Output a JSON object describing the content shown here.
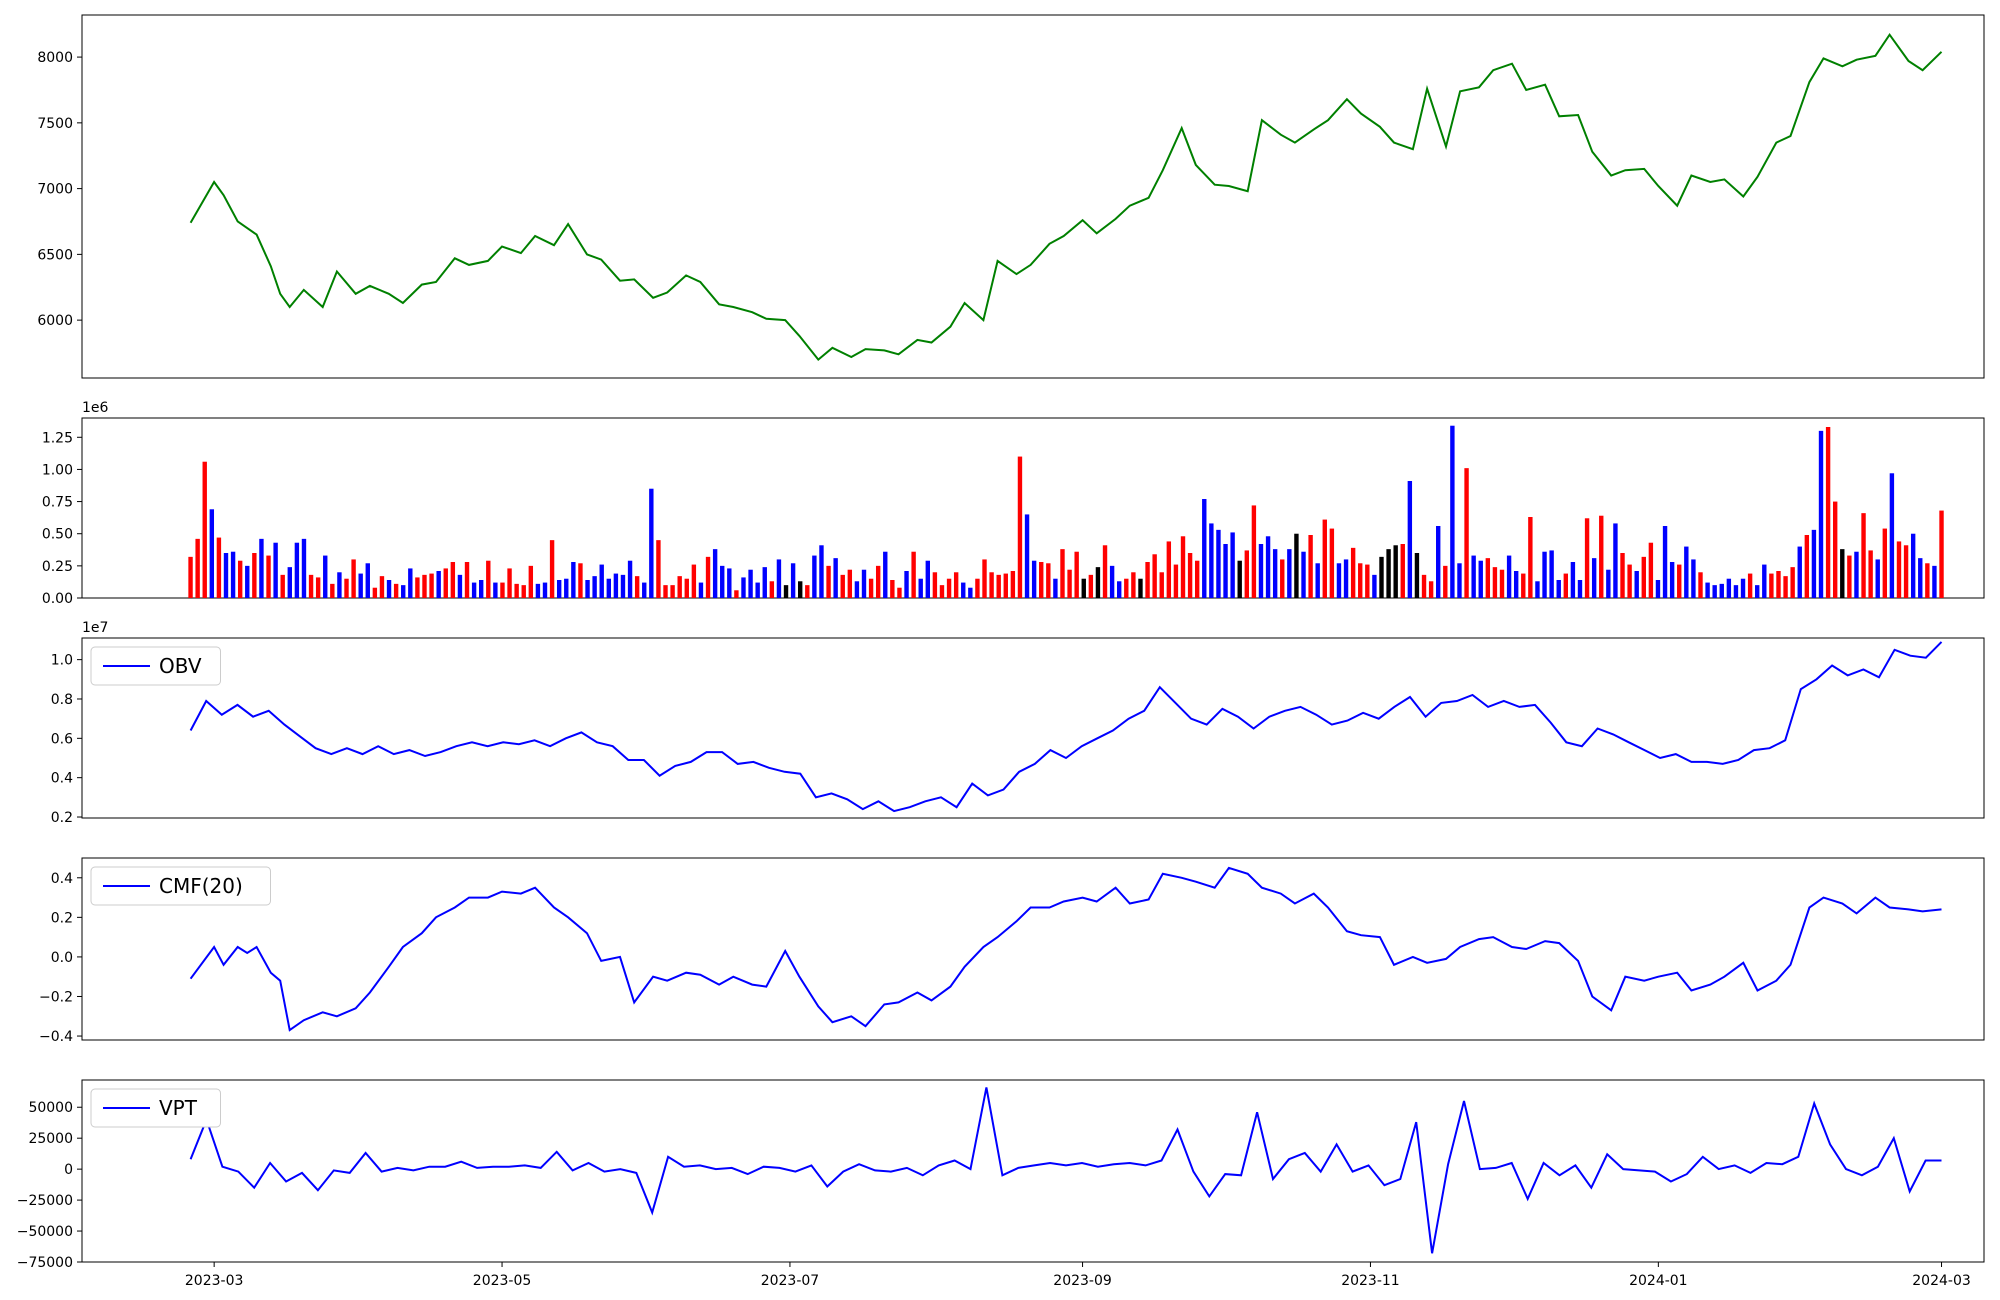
{
  "chart_data": [
    {
      "type": "line",
      "color": "#008000",
      "xlim": [
        "2023-02-01",
        "2024-03-10"
      ],
      "ylim": [
        5560,
        8320
      ],
      "yticks": [
        6000,
        6500,
        7000,
        7500,
        8000
      ],
      "ytick_labels": [
        "6000",
        "6500",
        "7000",
        "7500",
        "8000"
      ],
      "xticks": [],
      "x": [
        "2023-02-24",
        "2023-03-01",
        "2023-03-03",
        "2023-03-06",
        "2023-03-08",
        "2023-03-10",
        "2023-03-13",
        "2023-03-15",
        "2023-03-17",
        "2023-03-20",
        "2023-03-24",
        "2023-03-27",
        "2023-03-31",
        "2023-04-03",
        "2023-04-07",
        "2023-04-10",
        "2023-04-14",
        "2023-04-17",
        "2023-04-21",
        "2023-04-24",
        "2023-04-28",
        "2023-05-01",
        "2023-05-05",
        "2023-05-08",
        "2023-05-12",
        "2023-05-15",
        "2023-05-19",
        "2023-05-22",
        "2023-05-26",
        "2023-05-29",
        "2023-06-02",
        "2023-06-05",
        "2023-06-09",
        "2023-06-12",
        "2023-06-16",
        "2023-06-19",
        "2023-06-23",
        "2023-06-26",
        "2023-06-30",
        "2023-07-03",
        "2023-07-07",
        "2023-07-10",
        "2023-07-14",
        "2023-07-17",
        "2023-07-21",
        "2023-07-24",
        "2023-07-28",
        "2023-07-31",
        "2023-08-04",
        "2023-08-07",
        "2023-08-11",
        "2023-08-14",
        "2023-08-18",
        "2023-08-21",
        "2023-08-25",
        "2023-08-28",
        "2023-09-01",
        "2023-09-04",
        "2023-09-08",
        "2023-09-11",
        "2023-09-15",
        "2023-09-18",
        "2023-09-22",
        "2023-09-25",
        "2023-09-29",
        "2023-10-02",
        "2023-10-06",
        "2023-10-09",
        "2023-10-13",
        "2023-10-16",
        "2023-10-20",
        "2023-10-23",
        "2023-10-27",
        "2023-10-30",
        "2023-11-03",
        "2023-11-06",
        "2023-11-10",
        "2023-11-13",
        "2023-11-17",
        "2023-11-20",
        "2023-11-24",
        "2023-11-27",
        "2023-12-01",
        "2023-12-04",
        "2023-12-08",
        "2023-12-11",
        "2023-12-15",
        "2023-12-18",
        "2023-12-22",
        "2023-12-25",
        "2023-12-29",
        "2024-01-01",
        "2024-01-05",
        "2024-01-08",
        "2024-01-12",
        "2024-01-15",
        "2024-01-19",
        "2024-01-22",
        "2024-01-26",
        "2024-01-29",
        "2024-02-02",
        "2024-02-05",
        "2024-02-09",
        "2024-02-12",
        "2024-02-16",
        "2024-02-19",
        "2024-02-23",
        "2024-02-26",
        "2024-03-01"
      ],
      "values": [
        6740,
        7050,
        6950,
        6750,
        6700,
        6650,
        6410,
        6200,
        6100,
        6230,
        6100,
        6370,
        6200,
        6260,
        6200,
        6130,
        6270,
        6290,
        6470,
        6420,
        6450,
        6560,
        6510,
        6640,
        6570,
        6730,
        6500,
        6460,
        6300,
        6310,
        6170,
        6210,
        6340,
        6290,
        6120,
        6100,
        6060,
        6010,
        6000,
        5880,
        5700,
        5790,
        5720,
        5780,
        5770,
        5740,
        5850,
        5830,
        5950,
        6130,
        6000,
        6450,
        6350,
        6420,
        6580,
        6640,
        6760,
        6660,
        6770,
        6870,
        6930,
        7140,
        7460,
        7180,
        7030,
        7020,
        6980,
        7520,
        7410,
        7350,
        7450,
        7520,
        7680,
        7570,
        7470,
        7350,
        7300,
        7760,
        7320,
        7740,
        7770,
        7900,
        7950,
        7750,
        7790,
        7550,
        7560,
        7280,
        7100,
        7140,
        7150,
        7020,
        6870,
        7100,
        7050,
        7070,
        6940,
        7090,
        7350,
        7400,
        7810,
        7990,
        7930,
        7980,
        8010,
        8170,
        7970,
        7900,
        8040
      ]
    },
    {
      "type": "bar",
      "yticks": [
        0,
        250000,
        500000,
        750000,
        1000000,
        1250000
      ],
      "ytick_labels": [
        "0.00",
        "0.25",
        "0.50",
        "0.75",
        "1.00",
        "1.25"
      ],
      "ylim": [
        0,
        1400000
      ],
      "scale_label": "1e6",
      "colors": {
        "up": "#ff0000",
        "down": "#0000ff",
        "flat": "#000000"
      },
      "values": [
        320000,
        460000,
        1060000,
        690000,
        470000,
        350000,
        360000,
        290000,
        250000,
        350000,
        460000,
        330000,
        430000,
        180000,
        240000,
        430000,
        460000,
        180000,
        160000,
        330000,
        110000,
        200000,
        150000,
        300000,
        190000,
        270000,
        80000,
        170000,
        140000,
        110000,
        100000,
        230000,
        160000,
        180000,
        190000,
        210000,
        230000,
        280000,
        180000,
        280000,
        120000,
        140000,
        290000,
        120000,
        120000,
        230000,
        110000,
        100000,
        250000,
        110000,
        120000,
        450000,
        140000,
        150000,
        280000,
        270000,
        140000,
        170000,
        260000,
        150000,
        190000,
        180000,
        290000,
        170000,
        120000,
        850000,
        450000,
        100000,
        100000,
        170000,
        150000,
        260000,
        120000,
        320000,
        380000,
        250000,
        230000,
        60000,
        160000,
        220000,
        120000,
        240000,
        130000,
        300000,
        100000,
        270000,
        130000,
        100000,
        330000,
        410000,
        250000,
        310000,
        180000,
        220000,
        130000,
        220000,
        150000,
        250000,
        360000,
        140000,
        80000,
        210000,
        360000,
        150000,
        290000,
        200000,
        100000,
        150000,
        200000,
        120000,
        80000,
        150000,
        300000,
        200000,
        180000,
        190000,
        210000,
        1100000,
        650000,
        290000,
        280000,
        270000,
        150000,
        380000,
        220000,
        360000,
        150000,
        180000,
        240000,
        410000,
        250000,
        130000,
        150000,
        200000,
        150000,
        280000,
        340000,
        200000,
        440000,
        260000,
        480000,
        350000,
        290000,
        770000,
        580000,
        530000,
        420000,
        510000,
        290000,
        370000,
        720000,
        420000,
        480000,
        380000,
        300000,
        380000,
        500000,
        360000,
        490000,
        270000,
        610000,
        540000,
        270000,
        300000,
        390000,
        270000,
        260000,
        180000,
        320000,
        380000,
        410000,
        420000,
        910000,
        350000,
        180000,
        130000,
        560000,
        250000,
        1340000,
        270000,
        1010000,
        330000,
        290000,
        310000,
        240000,
        220000,
        330000,
        210000,
        190000,
        630000,
        130000,
        360000,
        370000,
        140000,
        190000,
        280000,
        140000,
        620000,
        310000,
        640000,
        220000,
        580000,
        350000,
        260000,
        210000,
        320000,
        430000,
        140000,
        560000,
        280000,
        260000,
        400000,
        300000,
        200000,
        120000,
        100000,
        110000,
        150000,
        100000,
        150000,
        190000,
        100000,
        260000,
        190000,
        210000,
        170000,
        240000,
        400000,
        490000,
        530000,
        1300000,
        1330000,
        750000,
        380000,
        330000,
        360000,
        660000,
        370000,
        300000,
        540000,
        970000,
        440000,
        410000,
        500000,
        310000,
        270000,
        250000,
        680000
      ],
      "bar_colors": [
        "up",
        "up",
        "up",
        "down",
        "up",
        "down",
        "down",
        "up",
        "down",
        "up",
        "down",
        "up",
        "down",
        "up",
        "down",
        "down",
        "down",
        "up",
        "up",
        "down",
        "up",
        "down",
        "up",
        "up",
        "down",
        "down",
        "up",
        "up",
        "down",
        "up",
        "down",
        "down",
        "up",
        "up",
        "up",
        "down",
        "up",
        "up",
        "down",
        "up",
        "down",
        "down",
        "up",
        "down",
        "up",
        "up",
        "up",
        "up",
        "up",
        "down",
        "down",
        "up",
        "down",
        "down",
        "down",
        "up",
        "down",
        "down",
        "down",
        "down",
        "down",
        "down",
        "down",
        "up",
        "down",
        "down",
        "up",
        "up",
        "up",
        "up",
        "up",
        "up",
        "down",
        "up",
        "down",
        "down",
        "down",
        "up",
        "down",
        "down",
        "down",
        "down",
        "up",
        "down",
        "flat",
        "down",
        "flat",
        "up",
        "down",
        "down",
        "up",
        "down",
        "up",
        "up",
        "down",
        "down",
        "up",
        "up",
        "down",
        "up",
        "up",
        "down",
        "up",
        "down",
        "down",
        "up",
        "up",
        "up",
        "up",
        "down",
        "down",
        "up",
        "up",
        "up",
        "up",
        "up",
        "up",
        "up",
        "down",
        "down",
        "up",
        "up",
        "down",
        "up",
        "up",
        "up",
        "flat",
        "up",
        "flat",
        "up",
        "down",
        "down",
        "up",
        "up",
        "flat",
        "up",
        "up",
        "up",
        "up",
        "up",
        "up",
        "up",
        "up",
        "down",
        "down",
        "down",
        "down",
        "down",
        "flat",
        "up",
        "up",
        "down",
        "down",
        "down",
        "up",
        "down",
        "flat",
        "down",
        "up",
        "down",
        "up",
        "up",
        "down",
        "down",
        "up",
        "up",
        "up",
        "down",
        "flat",
        "flat",
        "flat",
        "up",
        "down",
        "flat",
        "up",
        "up",
        "down",
        "up",
        "down",
        "down",
        "up",
        "down",
        "down",
        "up",
        "up",
        "up",
        "down",
        "down",
        "up",
        "up",
        "down",
        "down",
        "down",
        "down",
        "up",
        "down",
        "down",
        "up",
        "down",
        "up",
        "down",
        "down",
        "up",
        "up",
        "down",
        "up",
        "up",
        "down",
        "down",
        "down",
        "up",
        "down",
        "down",
        "up",
        "down",
        "down",
        "down",
        "down",
        "down",
        "down",
        "up",
        "down",
        "down",
        "up",
        "up",
        "up",
        "up",
        "down",
        "up",
        "down",
        "down",
        "up",
        "up",
        "flat",
        "up",
        "down",
        "up",
        "up",
        "down",
        "up",
        "down",
        "up",
        "up",
        "down",
        "down",
        "up",
        "down",
        "up",
        "up",
        "up"
      ]
    },
    {
      "type": "line",
      "color": "#0000ff",
      "legend": "OBV",
      "scale_label": "1e7",
      "ylim": [
        1950000,
        11100000
      ],
      "yticks": [
        2000000,
        4000000,
        6000000,
        8000000,
        10000000
      ],
      "ytick_labels": [
        "0.2",
        "0.4",
        "0.6",
        "0.8",
        "1.0"
      ],
      "values": [
        6400000,
        7900000,
        7200000,
        7700000,
        7100000,
        7400000,
        6700000,
        6100000,
        5500000,
        5200000,
        5500000,
        5200000,
        5600000,
        5200000,
        5400000,
        5100000,
        5300000,
        5600000,
        5800000,
        5600000,
        5800000,
        5700000,
        5900000,
        5600000,
        6000000,
        6300000,
        5800000,
        5600000,
        4900000,
        4900000,
        4100000,
        4600000,
        4800000,
        5300000,
        5300000,
        4700000,
        4800000,
        4500000,
        4300000,
        4200000,
        3000000,
        3200000,
        2900000,
        2400000,
        2800000,
        2300000,
        2500000,
        2800000,
        3000000,
        2500000,
        3700000,
        3100000,
        3400000,
        4300000,
        4700000,
        5400000,
        5000000,
        5600000,
        6000000,
        6400000,
        7000000,
        7400000,
        8600000,
        7800000,
        7000000,
        6700000,
        7500000,
        7100000,
        6500000,
        7100000,
        7400000,
        7600000,
        7200000,
        6700000,
        6900000,
        7300000,
        7000000,
        7600000,
        8100000,
        7100000,
        7800000,
        7900000,
        8200000,
        7600000,
        7900000,
        7600000,
        7700000,
        6800000,
        5800000,
        5600000,
        6500000,
        6200000,
        5800000,
        5400000,
        5000000,
        5200000,
        4800000,
        4800000,
        4700000,
        4900000,
        5400000,
        5500000,
        5900000,
        8500000,
        9000000,
        9700000,
        9200000,
        9500000,
        9100000,
        10500000,
        10200000,
        10100000,
        10900000
      ]
    },
    {
      "type": "line",
      "color": "#0000ff",
      "legend": "CMF(20)",
      "ylim": [
        -0.42,
        0.5
      ],
      "yticks": [
        -0.4,
        -0.2,
        0.0,
        0.2,
        0.4
      ],
      "ytick_labels": [
        "−0.4",
        "−0.2",
        "0.0",
        "0.2",
        "0.4"
      ],
      "values": [
        -0.11,
        0.05,
        -0.04,
        0.05,
        0.02,
        0.05,
        -0.08,
        -0.12,
        -0.37,
        -0.32,
        -0.28,
        -0.3,
        -0.26,
        -0.18,
        -0.05,
        0.05,
        0.12,
        0.2,
        0.25,
        0.3,
        0.3,
        0.33,
        0.32,
        0.35,
        0.25,
        0.2,
        0.12,
        -0.02,
        0.0,
        -0.23,
        -0.1,
        -0.12,
        -0.08,
        -0.09,
        -0.14,
        -0.1,
        -0.14,
        -0.15,
        0.03,
        -0.1,
        -0.25,
        -0.33,
        -0.3,
        -0.35,
        -0.24,
        -0.23,
        -0.18,
        -0.22,
        -0.15,
        -0.05,
        0.05,
        0.1,
        0.18,
        0.25,
        0.25,
        0.28,
        0.3,
        0.28,
        0.35,
        0.27,
        0.29,
        0.42,
        0.4,
        0.38,
        0.35,
        0.45,
        0.42,
        0.35,
        0.32,
        0.27,
        0.32,
        0.25,
        0.13,
        0.11,
        0.1,
        -0.04,
        0.0,
        -0.03,
        -0.01,
        0.05,
        0.09,
        0.1,
        0.05,
        0.04,
        0.08,
        0.07,
        -0.02,
        -0.2,
        -0.27,
        -0.1,
        -0.12,
        -0.1,
        -0.08,
        -0.17,
        -0.14,
        -0.1,
        -0.03,
        -0.17,
        -0.12,
        -0.04,
        0.25,
        0.3,
        0.27,
        0.22,
        0.3,
        0.25,
        0.24,
        0.23,
        0.24
      ]
    },
    {
      "type": "line",
      "color": "#0000ff",
      "legend": "VPT",
      "ylim": [
        -75000,
        72000
      ],
      "yticks": [
        -75000,
        -50000,
        -25000,
        0,
        25000,
        50000
      ],
      "ytick_labels": [
        "−75000",
        "−50000",
        "−25000",
        "0",
        "25000",
        "50000"
      ],
      "xticks": [
        "2023-03-01",
        "2023-05-01",
        "2023-07-01",
        "2023-09-01",
        "2023-11-01",
        "2024-01-01",
        "2024-03-01"
      ],
      "xtick_labels": [
        "2023-03",
        "2023-05",
        "2023-07",
        "2023-09",
        "2023-11",
        "2024-01",
        "2024-03"
      ],
      "values": [
        8000,
        40000,
        2000,
        -2000,
        -15000,
        5000,
        -10000,
        -3000,
        -17000,
        -1000,
        -3000,
        13000,
        -2000,
        1000,
        -1000,
        2000,
        2000,
        6000,
        1000,
        2000,
        2000,
        3000,
        1000,
        14000,
        -1000,
        5000,
        -2000,
        0,
        -3000,
        -35000,
        10000,
        2000,
        3000,
        0,
        1000,
        -4000,
        2000,
        1000,
        -2000,
        3000,
        -14000,
        -2000,
        4000,
        -1000,
        -2000,
        1000,
        -5000,
        3000,
        7000,
        0,
        66000,
        -5000,
        1000,
        3000,
        5000,
        3000,
        5000,
        2000,
        4000,
        5000,
        3000,
        7000,
        32000,
        -2000,
        -22000,
        -4000,
        -5000,
        46000,
        -8000,
        8000,
        13000,
        -2000,
        20000,
        -2000,
        3000,
        -13000,
        -8000,
        38000,
        -68000,
        4000,
        55000,
        0,
        1000,
        5000,
        -24000,
        5000,
        -5000,
        3000,
        -15000,
        12000,
        0,
        -1000,
        -2000,
        -10000,
        -4000,
        10000,
        0,
        3000,
        -3000,
        5000,
        4000,
        10000,
        53000,
        20000,
        0,
        -5000,
        2000,
        25000,
        -18000,
        7000,
        7000
      ]
    }
  ]
}
